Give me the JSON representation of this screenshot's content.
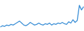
{
  "chart_data": {
    "type": "line",
    "values": [
      5,
      7,
      6,
      8,
      7,
      9,
      8,
      10,
      12,
      14,
      11,
      8,
      7,
      9,
      12,
      10,
      8,
      9,
      11,
      9,
      8,
      10,
      9,
      11,
      8,
      10,
      9,
      11,
      10,
      12,
      10,
      9,
      13,
      11,
      16,
      12,
      15,
      38,
      31,
      36
    ],
    "color": "#3b8fd6",
    "ylim": [
      0,
      45
    ],
    "tick_labels": false,
    "grid": false
  }
}
